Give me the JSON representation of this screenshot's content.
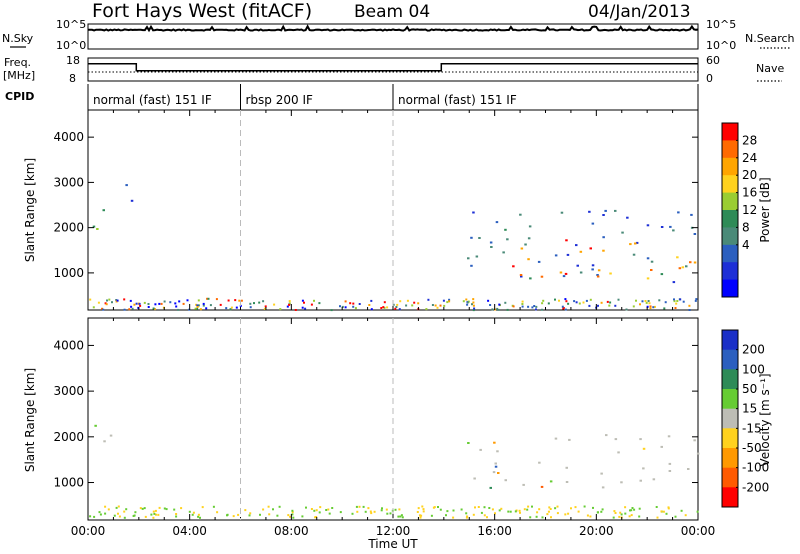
{
  "header": {
    "station": "Fort Hays West (fitACF)",
    "beam": "Beam 04",
    "date": "04/Jan/2013"
  },
  "noise_panel": {
    "left_label": "N.Sky",
    "right_label": "N.Search",
    "left_ticks": [
      "10^5",
      "10^0"
    ],
    "right_ticks": [
      "10^5",
      "10^0"
    ]
  },
  "freq_panel": {
    "left_label_line1": "Freq.",
    "left_label_line2": "[MHz]",
    "right_label": "Nave",
    "left_ticks": [
      "18",
      "8"
    ],
    "right_ticks": [
      "60",
      "0"
    ]
  },
  "cpid_panel": {
    "label": "CPID",
    "segments": [
      {
        "name": "normal (fast) 151 IF",
        "start_hour": 0,
        "end_hour": 6
      },
      {
        "name": "rbsp 200 IF",
        "start_hour": 6,
        "end_hour": 12
      },
      {
        "name": "normal (fast) 151 IF",
        "start_hour": 12,
        "end_hour": 24
      }
    ]
  },
  "power_panel": {
    "ylabel": "Slant Range [km]",
    "cbar_label": "Power [dB]",
    "cbar_ticks": [
      "28",
      "24",
      "20",
      "16",
      "12",
      "8",
      "4"
    ],
    "cbar_colors": [
      "#ff0000",
      "#ff6a00",
      "#ffa500",
      "#ffd21e",
      "#9acd32",
      "#2e8b57",
      "#4a8a78",
      "#2b5fbf",
      "#1d2fd6",
      "#0000ff"
    ]
  },
  "velocity_panel": {
    "ylabel": "Slant Range [km]",
    "cbar_label": "Velocity [m s⁻¹]",
    "cbar_ticks": [
      "200",
      "100",
      "50",
      "15",
      "-15",
      "-50",
      "-100",
      "-200"
    ],
    "cbar_colors": [
      "#1a2fc7",
      "#2b5fbf",
      "#2e8b57",
      "#66cc33",
      "#bdbdb5",
      "#ffd21e",
      "#ff9900",
      "#ff5a00",
      "#ff0000"
    ]
  },
  "xaxis": {
    "label": "Time UT",
    "ticks": [
      "00:00",
      "04:00",
      "08:00",
      "12:00",
      "16:00",
      "20:00",
      "00:00"
    ]
  },
  "chart_data": [
    {
      "type": "line",
      "title": "N.Sky / N.Search",
      "x_range_hours": [
        0,
        24
      ],
      "ylim_log10": [
        0,
        5
      ],
      "series": [
        {
          "name": "N.Sky",
          "approx_log10_level": 3.8
        },
        {
          "name": "N.Search",
          "approx_log10_level": 3.8
        }
      ]
    },
    {
      "type": "line",
      "title": "Freq. / Nave",
      "x_range_hours": [
        0,
        24
      ],
      "ylim": [
        8,
        18
      ],
      "series": [
        {
          "name": "Freq.",
          "x": [
            0,
            1.9,
            1.9,
            13.9,
            13.9,
            24
          ],
          "y": [
            15.5,
            15.5,
            12.5,
            12.5,
            15.5,
            15.5
          ]
        },
        {
          "name": "Nave",
          "x": [
            0,
            24
          ],
          "y": [
            14,
            14
          ]
        }
      ]
    },
    {
      "type": "heatmap",
      "title": "Power [dB]",
      "x_range_hours": [
        0,
        24
      ],
      "ylim": [
        180,
        4600
      ],
      "yticks": [
        1000,
        2000,
        3000,
        4000
      ],
      "clim": [
        0,
        30
      ],
      "regions": [
        {
          "t0": 0,
          "t1": 0.9,
          "r0": 1700,
          "r1": 2700,
          "level": 12
        },
        {
          "t0": 1.3,
          "t1": 1.7,
          "r0": 1800,
          "r1": 3100,
          "level": 6
        },
        {
          "t0": 14.8,
          "t1": 24,
          "r0": 800,
          "r1": 2500,
          "level": 10
        },
        {
          "t0": 16.5,
          "t1": 24,
          "r0": 900,
          "r1": 1800,
          "level": 26
        }
      ]
    },
    {
      "type": "heatmap",
      "title": "Velocity [m s⁻¹]",
      "x_range_hours": [
        0,
        24
      ],
      "ylim": [
        180,
        4600
      ],
      "yticks": [
        1000,
        2000,
        3000,
        4000
      ],
      "clim": [
        -200,
        200
      ],
      "regions": [
        {
          "t0": 0,
          "t1": 0.9,
          "r0": 1700,
          "r1": 2700,
          "level": 0
        },
        {
          "t0": 14.8,
          "t1": 24,
          "r0": 900,
          "r1": 2100,
          "level": 0
        }
      ]
    }
  ]
}
